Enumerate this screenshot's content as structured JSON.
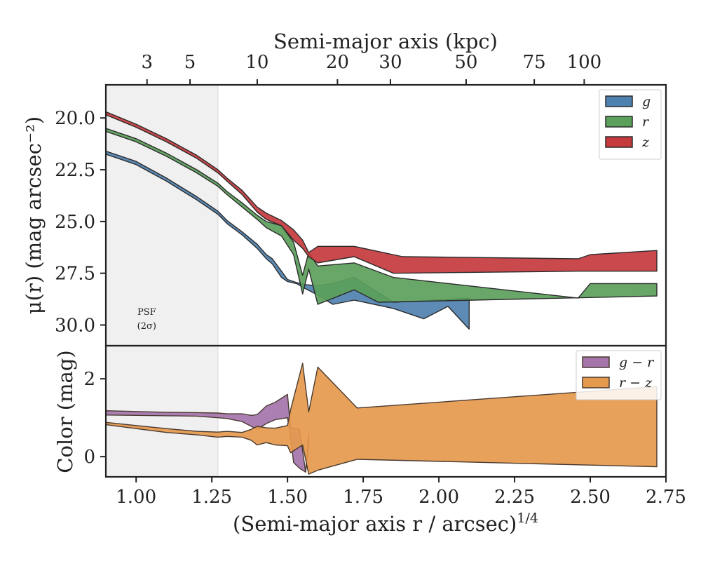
{
  "chart_data": [
    {
      "type": "area",
      "panel": "surface-brightness",
      "xlabel": "(Semi-major axis r / arcsec)",
      "xlabel_sup": "1/4",
      "ylabel": "μ(r) (mag arcsec⁻²)",
      "top_xlabel": "Semi-major axis (kpc)",
      "top_ticks": [
        {
          "label": "3",
          "x": 1.036
        },
        {
          "label": "5",
          "x": 1.178
        },
        {
          "label": "10",
          "x": 1.4
        },
        {
          "label": "20",
          "x": 1.665
        },
        {
          "label": "30",
          "x": 1.84
        },
        {
          "label": "50",
          "x": 2.09
        },
        {
          "label": "75",
          "x": 2.315
        },
        {
          "label": "100",
          "x": 2.48
        }
      ],
      "xlim": [
        0.9,
        2.75
      ],
      "ylim": [
        31.0,
        18.4
      ],
      "yticks": [
        20.0,
        22.5,
        25.0,
        27.5,
        30.0
      ],
      "ytick_labels": [
        "20.0",
        "22.5",
        "25.0",
        "27.5",
        "30.0"
      ],
      "psf_shade_x": [
        0.9,
        1.27
      ],
      "psf_label": [
        "PSF",
        "(2σ)"
      ],
      "legend_position": "top-right",
      "series": [
        {
          "name": "g",
          "color": "#4f81b0",
          "upper": [
            [
              0.9,
              21.6
            ],
            [
              1.0,
              22.1
            ],
            [
              1.1,
              22.9
            ],
            [
              1.2,
              23.8
            ],
            [
              1.27,
              24.5
            ],
            [
              1.3,
              24.95
            ],
            [
              1.35,
              25.5
            ],
            [
              1.4,
              26.1
            ],
            [
              1.43,
              26.6
            ],
            [
              1.45,
              26.8
            ],
            [
              1.48,
              27.4
            ],
            [
              1.5,
              27.8
            ],
            [
              1.53,
              27.95
            ],
            [
              1.56,
              28.05
            ],
            [
              1.6,
              28.1
            ],
            [
              1.65,
              28.0
            ],
            [
              1.72,
              27.7
            ],
            [
              1.85,
              28.9
            ],
            [
              2.1,
              28.7
            ]
          ],
          "lower": [
            [
              0.9,
              21.75
            ],
            [
              1.0,
              22.25
            ],
            [
              1.1,
              23.05
            ],
            [
              1.2,
              23.95
            ],
            [
              1.27,
              24.65
            ],
            [
              1.3,
              25.1
            ],
            [
              1.35,
              25.65
            ],
            [
              1.4,
              26.3
            ],
            [
              1.43,
              26.8
            ],
            [
              1.45,
              27.05
            ],
            [
              1.48,
              27.7
            ],
            [
              1.5,
              27.9
            ],
            [
              1.53,
              28.0
            ],
            [
              1.56,
              28.25
            ],
            [
              1.6,
              28.55
            ],
            [
              1.65,
              29.0
            ],
            [
              1.72,
              28.8
            ],
            [
              1.85,
              29.2
            ],
            [
              1.95,
              29.7
            ],
            [
              2.03,
              29.1
            ],
            [
              2.1,
              30.2
            ]
          ]
        },
        {
          "name": "r",
          "color": "#5ba05b",
          "upper": [
            [
              0.9,
              20.5
            ],
            [
              1.0,
              21.0
            ],
            [
              1.1,
              21.7
            ],
            [
              1.2,
              22.5
            ],
            [
              1.27,
              23.15
            ],
            [
              1.3,
              23.55
            ],
            [
              1.35,
              24.1
            ],
            [
              1.4,
              24.7
            ],
            [
              1.43,
              25.0
            ],
            [
              1.48,
              25.2
            ],
            [
              1.52,
              26.0
            ],
            [
              1.55,
              27.6
            ],
            [
              1.57,
              26.5
            ],
            [
              1.6,
              27.15
            ],
            [
              1.72,
              27.0
            ],
            [
              1.85,
              27.7
            ],
            [
              2.46,
              28.7
            ],
            [
              2.5,
              28.0
            ],
            [
              2.72,
              28.0
            ]
          ],
          "lower": [
            [
              0.9,
              20.65
            ],
            [
              1.0,
              21.15
            ],
            [
              1.1,
              21.85
            ],
            [
              1.2,
              22.65
            ],
            [
              1.27,
              23.3
            ],
            [
              1.3,
              23.7
            ],
            [
              1.35,
              24.3
            ],
            [
              1.4,
              24.9
            ],
            [
              1.43,
              25.3
            ],
            [
              1.48,
              25.7
            ],
            [
              1.52,
              26.6
            ],
            [
              1.55,
              28.5
            ],
            [
              1.57,
              27.3
            ],
            [
              1.6,
              29.0
            ],
            [
              1.72,
              28.3
            ],
            [
              1.8,
              28.9
            ],
            [
              2.72,
              28.6
            ]
          ]
        },
        {
          "name": "z",
          "color": "#c43a3d",
          "upper": [
            [
              0.9,
              19.7
            ],
            [
              1.0,
              20.3
            ],
            [
              1.1,
              21.0
            ],
            [
              1.2,
              21.8
            ],
            [
              1.27,
              22.5
            ],
            [
              1.3,
              22.9
            ],
            [
              1.35,
              23.5
            ],
            [
              1.4,
              24.3
            ],
            [
              1.43,
              24.6
            ],
            [
              1.48,
              24.95
            ],
            [
              1.52,
              25.4
            ],
            [
              1.55,
              25.9
            ],
            [
              1.57,
              26.5
            ],
            [
              1.6,
              26.2
            ],
            [
              1.72,
              26.2
            ],
            [
              1.88,
              26.7
            ],
            [
              2.46,
              26.8
            ],
            [
              2.5,
              26.6
            ],
            [
              2.72,
              26.4
            ]
          ],
          "lower": [
            [
              0.9,
              19.85
            ],
            [
              1.0,
              20.45
            ],
            [
              1.1,
              21.15
            ],
            [
              1.2,
              21.95
            ],
            [
              1.27,
              22.65
            ],
            [
              1.3,
              23.05
            ],
            [
              1.35,
              23.7
            ],
            [
              1.4,
              24.55
            ],
            [
              1.43,
              24.9
            ],
            [
              1.48,
              25.2
            ],
            [
              1.52,
              25.9
            ],
            [
              1.55,
              26.3
            ],
            [
              1.57,
              26.7
            ],
            [
              1.6,
              27.0
            ],
            [
              1.72,
              26.7
            ],
            [
              1.85,
              27.5
            ],
            [
              2.46,
              27.4
            ],
            [
              2.72,
              27.4
            ]
          ]
        }
      ]
    },
    {
      "type": "area",
      "panel": "color",
      "xlabel": "(Semi-major axis r / arcsec)",
      "xlabel_sup": "1/4",
      "ylabel": "Color (mag)",
      "xlim": [
        0.9,
        2.75
      ],
      "ylim": [
        -0.52,
        2.85
      ],
      "xticks": [
        1.0,
        1.25,
        1.5,
        1.75,
        2.0,
        2.25,
        2.5,
        2.75
      ],
      "xtick_labels": [
        "1.00",
        "1.25",
        "1.50",
        "1.75",
        "2.00",
        "2.25",
        "2.50",
        "2.75"
      ],
      "yticks": [
        0,
        2
      ],
      "ytick_labels": [
        "0",
        "2"
      ],
      "psf_shade_x": [
        0.9,
        1.27
      ],
      "legend_position": "top-right",
      "series": [
        {
          "name": "g − r",
          "color": "#a574ab",
          "upper": [
            [
              0.9,
              1.18
            ],
            [
              1.0,
              1.16
            ],
            [
              1.1,
              1.14
            ],
            [
              1.2,
              1.13
            ],
            [
              1.27,
              1.12
            ],
            [
              1.3,
              1.1
            ],
            [
              1.35,
              1.1
            ],
            [
              1.38,
              1.06
            ],
            [
              1.4,
              1.08
            ],
            [
              1.43,
              1.3
            ],
            [
              1.46,
              1.4
            ],
            [
              1.5,
              1.6
            ],
            [
              1.51,
              0.75
            ],
            [
              1.54,
              0.7
            ],
            [
              1.56,
              -0.4
            ],
            [
              1.57,
              0.58
            ]
          ],
          "lower": [
            [
              0.9,
              1.07
            ],
            [
              1.0,
              1.06
            ],
            [
              1.1,
              1.05
            ],
            [
              1.2,
              1.04
            ],
            [
              1.27,
              1.0
            ],
            [
              1.3,
              0.98
            ],
            [
              1.35,
              0.9
            ],
            [
              1.38,
              0.78
            ],
            [
              1.4,
              0.7
            ],
            [
              1.43,
              0.85
            ],
            [
              1.46,
              0.95
            ],
            [
              1.5,
              1.0
            ],
            [
              1.51,
              0.5
            ],
            [
              1.52,
              -0.15
            ],
            [
              1.54,
              -0.3
            ],
            [
              1.56,
              -0.4
            ],
            [
              1.57,
              0.3
            ]
          ]
        },
        {
          "name": "r − z",
          "color": "#e5994d",
          "upper": [
            [
              0.9,
              0.88
            ],
            [
              1.0,
              0.8
            ],
            [
              1.1,
              0.72
            ],
            [
              1.2,
              0.65
            ],
            [
              1.27,
              0.63
            ],
            [
              1.3,
              0.65
            ],
            [
              1.35,
              0.62
            ],
            [
              1.38,
              0.7
            ],
            [
              1.4,
              0.78
            ],
            [
              1.43,
              0.74
            ],
            [
              1.46,
              0.73
            ],
            [
              1.5,
              0.8
            ],
            [
              1.51,
              1.2
            ],
            [
              1.55,
              2.4
            ],
            [
              1.57,
              1.15
            ],
            [
              1.6,
              2.3
            ],
            [
              1.73,
              1.25
            ],
            [
              2.72,
              1.8
            ]
          ],
          "lower": [
            [
              0.9,
              0.82
            ],
            [
              1.0,
              0.72
            ],
            [
              1.1,
              0.62
            ],
            [
              1.2,
              0.56
            ],
            [
              1.27,
              0.5
            ],
            [
              1.3,
              0.52
            ],
            [
              1.35,
              0.5
            ],
            [
              1.38,
              0.42
            ],
            [
              1.4,
              0.3
            ],
            [
              1.43,
              0.36
            ],
            [
              1.46,
              0.3
            ],
            [
              1.5,
              0.28
            ],
            [
              1.51,
              0.1
            ],
            [
              1.55,
              0.3
            ],
            [
              1.57,
              -0.45
            ],
            [
              1.6,
              -0.35
            ],
            [
              1.73,
              -0.07
            ],
            [
              2.72,
              -0.26
            ]
          ]
        }
      ]
    }
  ]
}
